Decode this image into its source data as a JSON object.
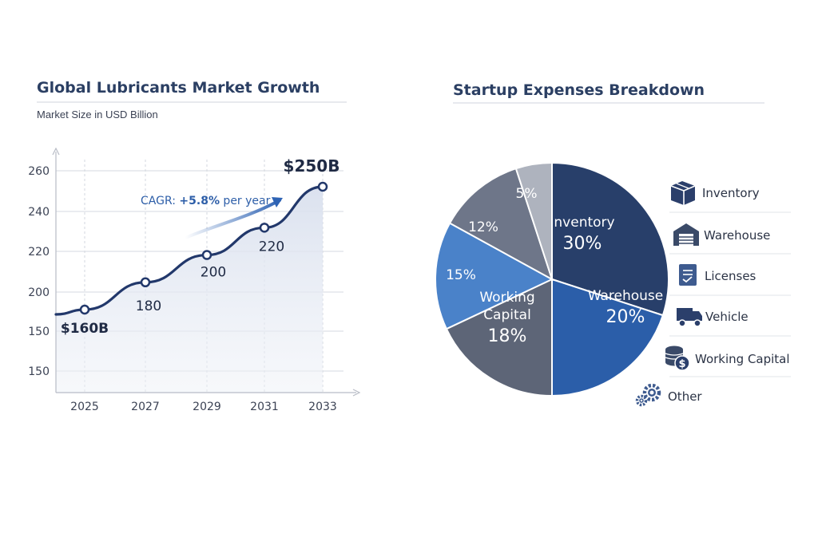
{
  "chart_data": [
    {
      "type": "line",
      "title": "Global Lubricants Market Growth",
      "subtitle": "Market Size in USD Billion",
      "x": [
        "2025",
        "2027",
        "2029",
        "2031",
        "2033"
      ],
      "series": [
        {
          "values": [
            160,
            180,
            200,
            220,
            250
          ]
        }
      ],
      "y_tick_labels": [
        "260",
        "240",
        "220",
        "200",
        "150",
        "150"
      ],
      "point_labels": [
        "$160B",
        "180",
        "200",
        "220",
        "$250B"
      ],
      "annotation": {
        "prefix": "CAGR: ",
        "value": "+5.8%",
        "suffix": " per year"
      },
      "grid": true,
      "colors": {
        "line": "#22386b",
        "area": "#dfe5f1",
        "arrow": "#2e63b4",
        "grid": "#cfd3dc"
      }
    },
    {
      "type": "pie",
      "title": "Startup Expenses Breakdown",
      "slices": [
        {
          "label": "Inventory",
          "value": 30,
          "text": "30%",
          "color": "#283f6a"
        },
        {
          "label": "Warehouse",
          "value": 20,
          "text": "20%",
          "color": "#2b5ea9"
        },
        {
          "label": "Working Capital",
          "value": 18,
          "text": "18%",
          "color": "#5d6577"
        },
        {
          "label": "",
          "value": 15,
          "text": "15%",
          "color": "#4a82c9"
        },
        {
          "label": "",
          "value": 12,
          "text": "12%",
          "color": "#6e7689"
        },
        {
          "label": "",
          "value": 5,
          "text": "5%",
          "color": "#aeb3be"
        }
      ],
      "legend": [
        {
          "label": "Inventory",
          "icon": "box-icon"
        },
        {
          "label": "Warehouse",
          "icon": "warehouse-icon"
        },
        {
          "label": "Licenses",
          "icon": "document-icon"
        },
        {
          "label": "Vehicle",
          "icon": "truck-icon"
        },
        {
          "label": "Working Capital",
          "icon": "coins-icon"
        },
        {
          "label": "Other",
          "icon": "gears-icon"
        }
      ],
      "legend_placement": "right"
    }
  ]
}
